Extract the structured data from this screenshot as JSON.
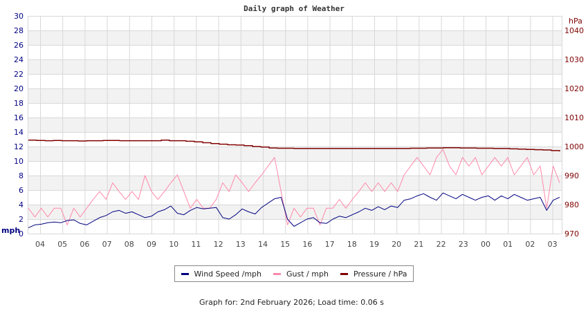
{
  "chart_data": {
    "type": "line",
    "title": "Daily graph of Weather",
    "left_axis": {
      "label": "mph",
      "ticks": [
        0,
        2,
        4,
        6,
        8,
        10,
        12,
        14,
        16,
        18,
        20,
        22,
        24,
        26,
        28,
        30
      ],
      "ylim": [
        0,
        30
      ],
      "color": "#000080"
    },
    "right_axis": {
      "label": "hPa",
      "ticks": [
        970,
        980,
        990,
        1000,
        1010,
        1020,
        1030,
        1040
      ],
      "ylim": [
        970,
        1045
      ],
      "color": "#800000"
    },
    "x_ticks": [
      "04",
      "05",
      "06",
      "07",
      "08",
      "09",
      "10",
      "11",
      "12",
      "13",
      "14",
      "15",
      "16",
      "17",
      "18",
      "19",
      "20",
      "21",
      "22",
      "23",
      "00",
      "01",
      "02",
      "03"
    ],
    "grid": true,
    "legend_position": "bottom",
    "series": [
      {
        "name": "Wind Speed /mph",
        "color": "#000080",
        "axis": "left",
        "values": [
          0.8,
          1.2,
          1.3,
          1.5,
          1.6,
          1.5,
          1.8,
          1.9,
          1.4,
          1.2,
          1.7,
          2.2,
          2.5,
          3.0,
          3.2,
          2.8,
          3.0,
          2.6,
          2.2,
          2.4,
          3.0,
          3.3,
          3.8,
          2.8,
          2.6,
          3.2,
          3.6,
          3.4,
          3.5,
          3.6,
          2.2,
          2.0,
          2.6,
          3.4,
          3.0,
          2.7,
          3.6,
          4.2,
          4.8,
          5.0,
          2.0,
          1.0,
          1.5,
          2.0,
          2.2,
          1.5,
          1.4,
          2.0,
          2.4,
          2.2,
          2.6,
          3.0,
          3.5,
          3.2,
          3.7,
          3.3,
          3.8,
          3.6,
          4.6,
          4.8,
          5.2,
          5.5,
          5.0,
          4.6,
          5.6,
          5.2,
          4.8,
          5.4,
          5.0,
          4.6,
          5.0,
          5.2,
          4.6,
          5.2,
          4.8,
          5.4,
          5.0,
          4.6,
          4.8,
          5.0,
          3.2,
          4.6,
          5.0
        ]
      },
      {
        "name": "Gust / mph",
        "color": "#ff88aa",
        "axis": "left",
        "values": [
          3.5,
          2.3,
          3.5,
          2.3,
          3.5,
          3.5,
          1.2,
          3.5,
          2.3,
          3.5,
          4.7,
          5.8,
          4.7,
          7.0,
          5.8,
          4.7,
          5.8,
          4.7,
          8.0,
          5.8,
          4.7,
          5.8,
          7.0,
          8.1,
          5.8,
          3.5,
          4.7,
          3.5,
          3.5,
          4.7,
          7.0,
          5.8,
          8.1,
          7.0,
          5.8,
          7.0,
          8.1,
          9.3,
          10.5,
          5.8,
          1.2,
          3.5,
          2.3,
          3.5,
          3.5,
          1.2,
          3.5,
          3.5,
          4.7,
          3.5,
          4.7,
          5.8,
          7.0,
          5.8,
          7.0,
          5.8,
          7.0,
          5.8,
          8.1,
          9.3,
          10.5,
          9.3,
          8.1,
          10.5,
          11.6,
          9.3,
          8.1,
          10.5,
          9.3,
          10.5,
          8.1,
          9.3,
          10.5,
          9.3,
          10.5,
          8.1,
          9.3,
          10.5,
          8.1,
          9.3,
          3.5,
          9.3,
          7.0
        ]
      },
      {
        "name": "Pressure / hPa",
        "color": "#800000",
        "axis": "right",
        "values": [
          1002.2,
          1002.1,
          1002.0,
          1002.1,
          1002.0,
          1002.0,
          1001.9,
          1002.0,
          1002.0,
          1002.1,
          1002.1,
          1002.0,
          1002.0,
          1002.0,
          1002.0,
          1002.0,
          1002.2,
          1002.0,
          1002.0,
          1001.8,
          1001.6,
          1001.3,
          1001.0,
          1000.8,
          1000.6,
          1000.5,
          1000.3,
          1000.0,
          999.8,
          999.5,
          999.4,
          999.4,
          999.3,
          999.3,
          999.3,
          999.3,
          999.3,
          999.3,
          999.3,
          999.3,
          999.3,
          999.3,
          999.3,
          999.3,
          999.3,
          999.3,
          999.4,
          999.4,
          999.5,
          999.5,
          999.6,
          999.6,
          999.5,
          999.5,
          999.4,
          999.4,
          999.3,
          999.3,
          999.2,
          999.1,
          999.0,
          998.9,
          998.8,
          998.6,
          998.3
        ]
      }
    ]
  },
  "legend": {
    "items": [
      {
        "label": "Wind Speed /mph",
        "color": "#000080"
      },
      {
        "label": "Gust / mph",
        "color": "#ff88aa"
      },
      {
        "label": "Pressure / hPa",
        "color": "#800000"
      }
    ]
  },
  "footer": {
    "text": "Graph for: 2nd February 2026; Load time: 0.06 s"
  }
}
